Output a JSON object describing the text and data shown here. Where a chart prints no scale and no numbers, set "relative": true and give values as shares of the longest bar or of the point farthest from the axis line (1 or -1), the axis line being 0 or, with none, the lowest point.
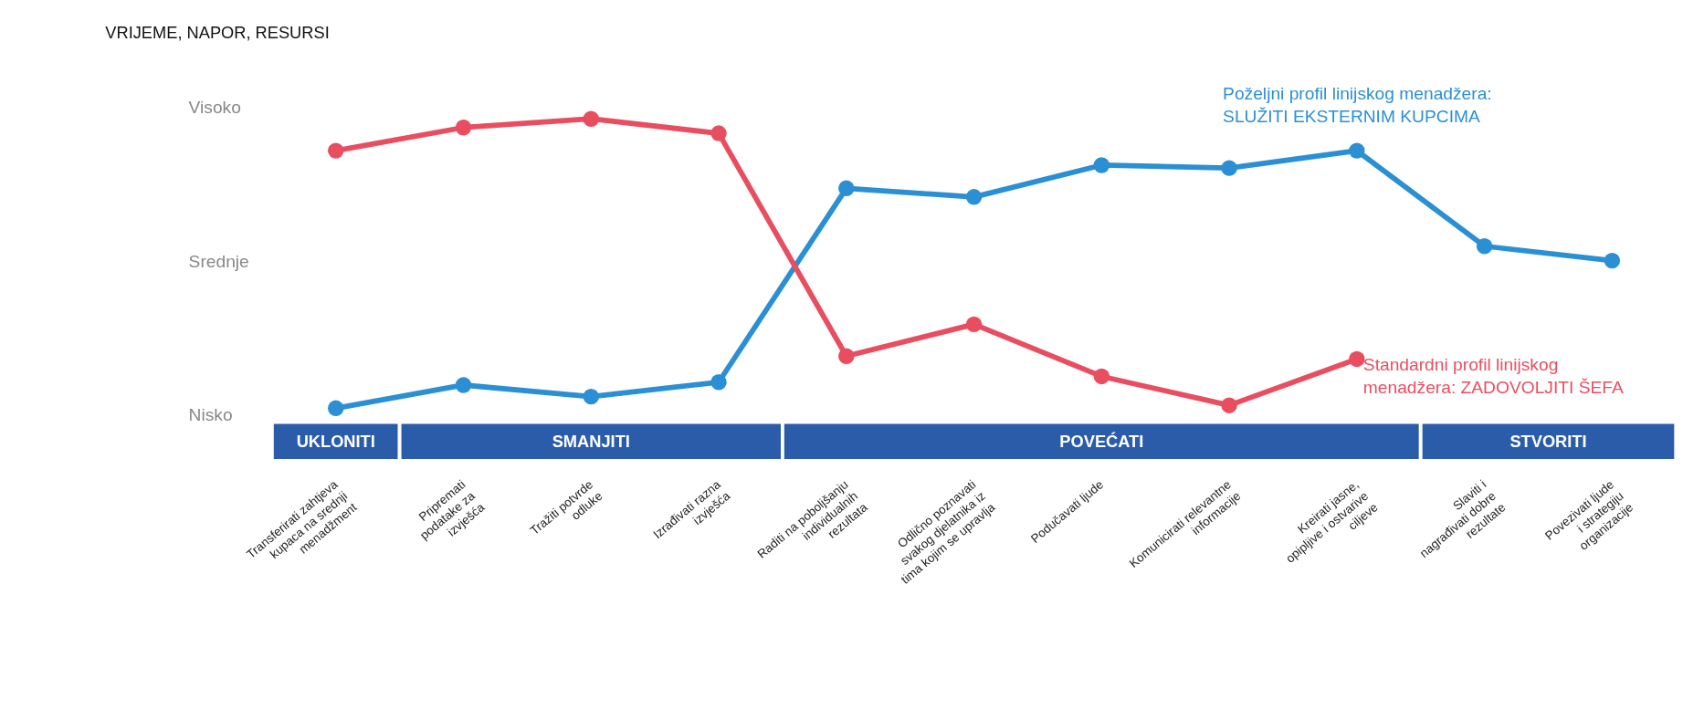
{
  "chart_data": {
    "type": "line",
    "title": "VRIJEME, NAPOR, RESURSI",
    "categories": [
      "Transferirati zahtjeva\nkupaca na srednji\nmenadžment",
      "Pripremati\npodatake za\nizvješća",
      "Tražiti potvrde\nodluke",
      "Izrađivati razna\nizvješća",
      "Raditi na poboljšanju\nindividualnih\nrezultata",
      "Odlično poznavati\nsvakog djelatnika iz\ntima kojim se upravlja",
      "Podučavati ljude",
      "Komunicirati relevantne\ninformacije",
      "Kreirati jasne,\nopipljive i ostvarive\nciljeve",
      "Slaviti i\nnagrađivati dobre\nrezultate",
      "Povezivati ljude\ni strategiju\norganizacije"
    ],
    "series": [
      {
        "name": "Poželjni profil linijskog menadžera:\nSLUŽITI EKSTERNIM KUPCIMA",
        "color": "#2b8fd4",
        "values": [
          0,
          0.08,
          0.04,
          0.09,
          0.76,
          0.73,
          0.84,
          0.83,
          0.89,
          0.56,
          0.51
        ]
      },
      {
        "name": "Standardni profil linijskog\nmenadžera: ZADOVOLJITI ŠEFA",
        "color": "#e94e60",
        "values": [
          0.89,
          0.97,
          1,
          0.95,
          0.18,
          0.29,
          0.11,
          0.01,
          0.17,
          null,
          null
        ]
      }
    ],
    "relative": true,
    "annotations": [
      "Visoko",
      "Srednje",
      "Nisko",
      "UKLONITI",
      "SMANJITI",
      "POVEĆATI",
      "STVORITI"
    ],
    "marker": "circle",
    "line_style": "solid"
  }
}
